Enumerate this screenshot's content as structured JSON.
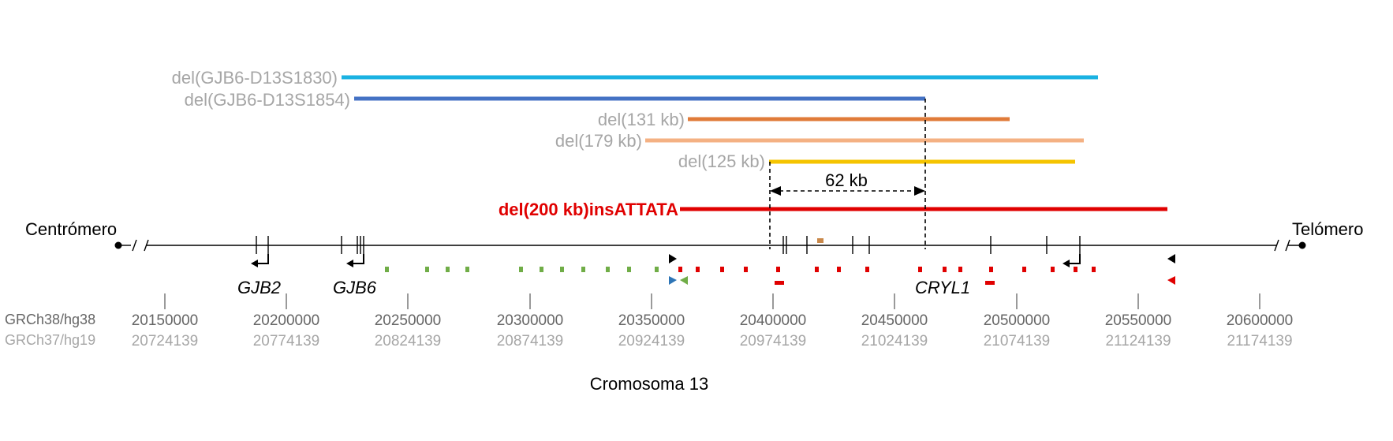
{
  "deletions": [
    {
      "label": "del(GJB6-D13S1830)",
      "color": "#1ab2e2",
      "label_color": "#a6a6a6"
    },
    {
      "label": "del(GJB6-D13S1854)",
      "color": "#4472c4",
      "label_color": "#a6a6a6"
    },
    {
      "label": "del(131 kb)",
      "color": "#e07b39",
      "label_color": "#a6a6a6"
    },
    {
      "label": "del(179 kb)",
      "color": "#f4b183",
      "label_color": "#a6a6a6"
    },
    {
      "label": "del(125 kb)",
      "color": "#f5c400",
      "label_color": "#a6a6a6"
    },
    {
      "label": "del(200 kb)insATTATA",
      "color": "#e00000",
      "label_color": "#e00000"
    }
  ],
  "overlap": {
    "label": "62 kb"
  },
  "chromosome": {
    "left_label": "Centrómero",
    "right_label": "Telómero",
    "title": "Cromosoma 13"
  },
  "genes": [
    {
      "name": "GJB2"
    },
    {
      "name": "GJB6"
    },
    {
      "name": "CRYL1"
    }
  ],
  "assemblies": {
    "hg38_label": "GRCh38/hg38",
    "hg19_label": "GRCh37/hg19"
  },
  "coordinates": [
    {
      "hg38": "20150000",
      "hg19": "20724139"
    },
    {
      "hg38": "20200000",
      "hg19": "20774139"
    },
    {
      "hg38": "20250000",
      "hg19": "20824139"
    },
    {
      "hg38": "20300000",
      "hg19": "20874139"
    },
    {
      "hg38": "20350000",
      "hg19": "20924139"
    },
    {
      "hg38": "20400000",
      "hg19": "20974139"
    },
    {
      "hg38": "20450000",
      "hg19": "21024139"
    },
    {
      "hg38": "20500000",
      "hg19": "21074139"
    },
    {
      "hg38": "20550000",
      "hg19": "21124139"
    },
    {
      "hg38": "20600000",
      "hg19": "21174139"
    }
  ],
  "colors": {
    "marker_green": "#70ad47",
    "marker_red": "#e00000",
    "marker_orange": "#c9884a",
    "primer_black": "#000000",
    "primer_blue": "#2e75b6",
    "primer_green": "#70ad47",
    "primer_red": "#e00000"
  }
}
